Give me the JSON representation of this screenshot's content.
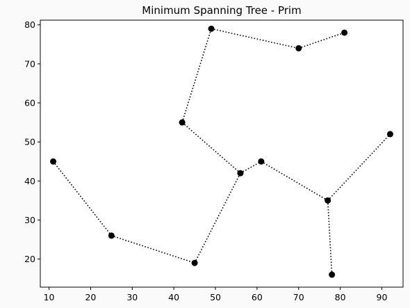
{
  "chart_data": {
    "type": "scatter",
    "title": "Minimum Spanning Tree - Prim",
    "xlabel": "",
    "ylabel": "",
    "xlim": [
      7.9,
      95.1
    ],
    "ylim": [
      12.8,
      81.2
    ],
    "xticks": [
      10,
      20,
      30,
      40,
      50,
      60,
      70,
      80,
      90
    ],
    "yticks": [
      20,
      30,
      40,
      50,
      60,
      70,
      80
    ],
    "grid": false,
    "points": [
      {
        "x": 11,
        "y": 45
      },
      {
        "x": 25,
        "y": 26
      },
      {
        "x": 45,
        "y": 19
      },
      {
        "x": 56,
        "y": 42
      },
      {
        "x": 42,
        "y": 55
      },
      {
        "x": 49,
        "y": 79
      },
      {
        "x": 70,
        "y": 74
      },
      {
        "x": 81,
        "y": 78
      },
      {
        "x": 61,
        "y": 45
      },
      {
        "x": 77,
        "y": 35
      },
      {
        "x": 78,
        "y": 16
      },
      {
        "x": 92,
        "y": 52
      }
    ],
    "edges": [
      [
        0,
        1
      ],
      [
        1,
        2
      ],
      [
        2,
        3
      ],
      [
        3,
        4
      ],
      [
        4,
        5
      ],
      [
        5,
        6
      ],
      [
        6,
        7
      ],
      [
        3,
        8
      ],
      [
        8,
        9
      ],
      [
        9,
        10
      ],
      [
        9,
        11
      ]
    ],
    "point_color": "#000000",
    "edge_color": "#000000",
    "edge_style": "dotted"
  }
}
